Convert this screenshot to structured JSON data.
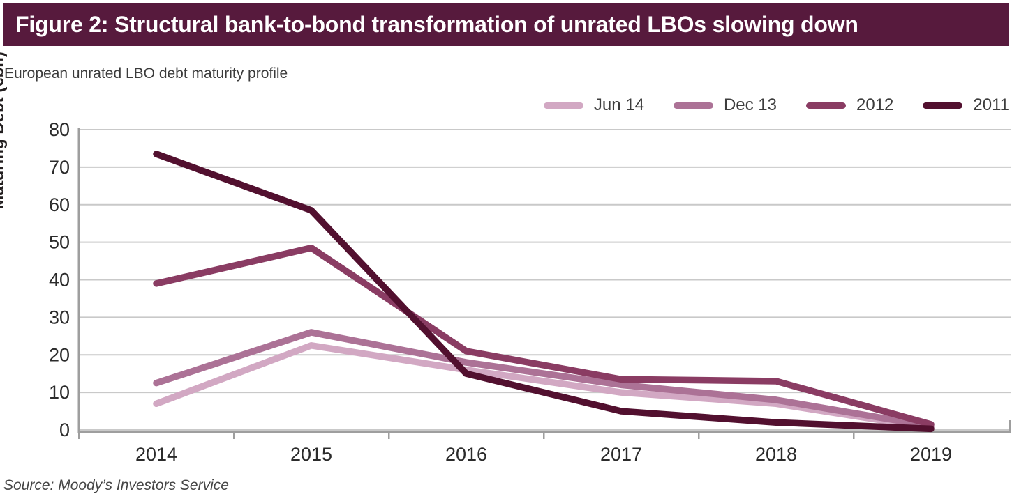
{
  "figure": {
    "title": "Figure 2: Structural bank-to-bond transformation of unrated LBOs slowing down",
    "subtitle": "European unrated LBO debt maturity profile",
    "source": "Source: Moody’s Investors Service"
  },
  "colors": {
    "title_bar_bg": "#571a3d",
    "title_text": "#ffffff",
    "gridline": "#c9c9c9",
    "axis": "#9e9e9e",
    "tick_label": "#2b2b2b",
    "series_jun14": "#d2a8c3",
    "series_dec13": "#ac7296",
    "series_2012": "#8a3c63",
    "series_2011": "#52102f"
  },
  "chart_data": {
    "type": "line",
    "title": "European unrated LBO debt maturity profile",
    "xlabel": "",
    "ylabel": "Maturing Debt (€bn)",
    "categories": [
      "2014",
      "2015",
      "2016",
      "2017",
      "2018",
      "2019"
    ],
    "series": [
      {
        "name": "Jun 14",
        "color": "#d2a8c3",
        "values": [
          7,
          22.5,
          16,
          10,
          7,
          0.5
        ]
      },
      {
        "name": "Dec 13",
        "color": "#ac7296",
        "values": [
          12.5,
          26,
          18,
          12,
          8,
          1
        ]
      },
      {
        "name": "2012",
        "color": "#8a3c63",
        "values": [
          39,
          48.5,
          21,
          13.5,
          13,
          1.5
        ]
      },
      {
        "name": "2011",
        "color": "#52102f",
        "values": [
          73.5,
          58.5,
          15,
          5,
          2,
          0.3
        ]
      }
    ],
    "ylim": [
      0,
      80
    ],
    "yticks": [
      0,
      10,
      20,
      30,
      40,
      50,
      60,
      70,
      80
    ],
    "grid": true,
    "legend_position": "top-right"
  }
}
